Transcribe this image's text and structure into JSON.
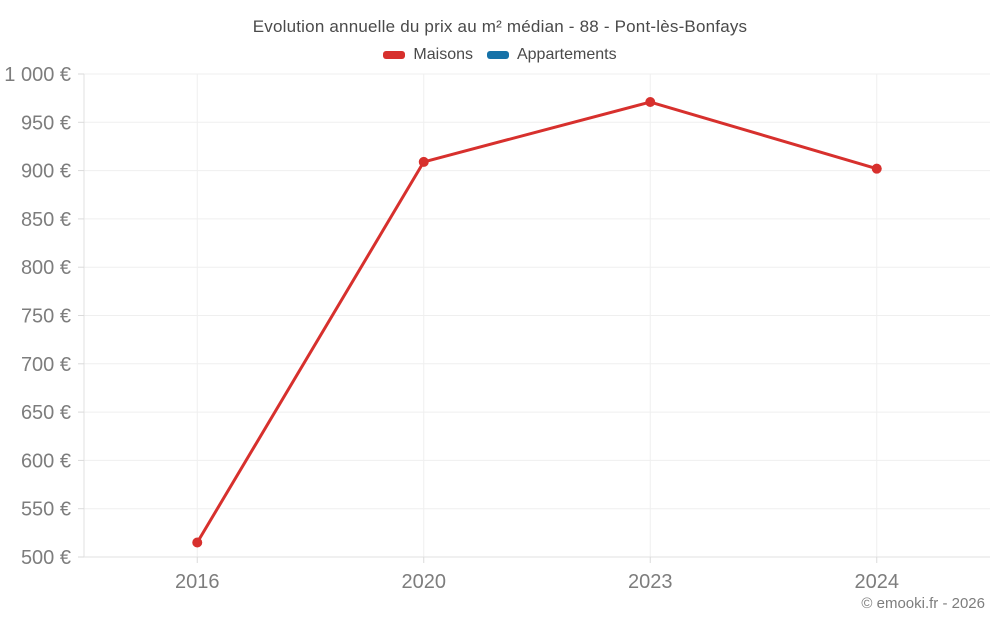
{
  "header": {
    "title": "Evolution annuelle du prix au m² médian - 88 - Pont-lès-Bonfays"
  },
  "legend": {
    "items": [
      {
        "label": "Maisons",
        "color": "#d7302d"
      },
      {
        "label": "Appartements",
        "color": "#1672a8"
      }
    ]
  },
  "footer": {
    "credit": "© emooki.fr - 2026"
  },
  "colors": {
    "maisons": "#d7302d",
    "appartements": "#1672a8",
    "gridline": "#efefef",
    "axis_line": "#e2e2e2",
    "tick_mark": "#dadada",
    "tick_label": "#7d7d7d",
    "title_text": "#4a4a4a"
  },
  "chart_data": {
    "type": "line",
    "title": "Evolution annuelle du prix au m² médian - 88 - Pont-lès-Bonfays",
    "categories": [
      "2016",
      "2020",
      "2023",
      "2024"
    ],
    "series": [
      {
        "name": "Maisons",
        "color": "#d7302d",
        "values": [
          515,
          909,
          971,
          902
        ]
      },
      {
        "name": "Appartements",
        "color": "#1672a8",
        "values": []
      }
    ],
    "xlabel": "",
    "ylabel": "",
    "ylim": [
      500,
      1000
    ],
    "ytick_step": 50,
    "ytick_labels": [
      "500 €",
      "550 €",
      "600 €",
      "650 €",
      "700 €",
      "750 €",
      "800 €",
      "850 €",
      "900 €",
      "950 €",
      "1 000 €"
    ],
    "grid": true,
    "legend_position": "top",
    "marker_radius": 5,
    "line_width": 3
  }
}
